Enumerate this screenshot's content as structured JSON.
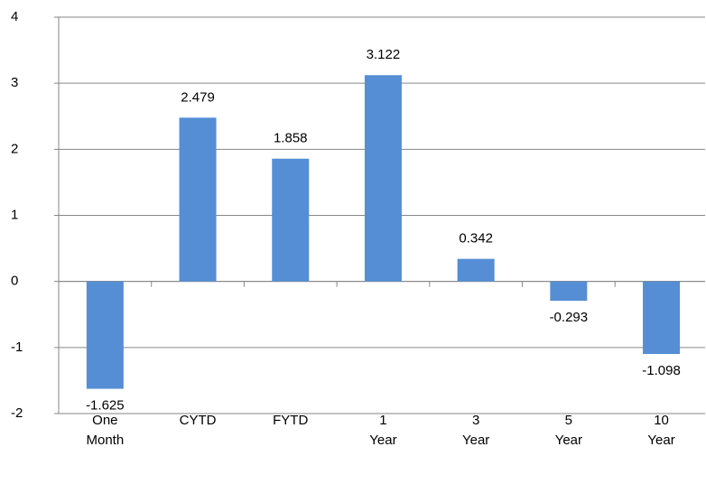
{
  "chart_data": {
    "type": "bar",
    "categories": [
      "One Month",
      "CYTD",
      "FYTD",
      "1 Year",
      "3 Year",
      "5 Year",
      "10 Year"
    ],
    "values": [
      -1.625,
      2.479,
      1.858,
      3.122,
      0.342,
      -0.293,
      -1.098
    ],
    "color": "#558ed5",
    "ylim": [
      -2,
      4
    ],
    "yticks": [
      -2,
      -1,
      0,
      1,
      2,
      3,
      4
    ],
    "grid": true
  }
}
